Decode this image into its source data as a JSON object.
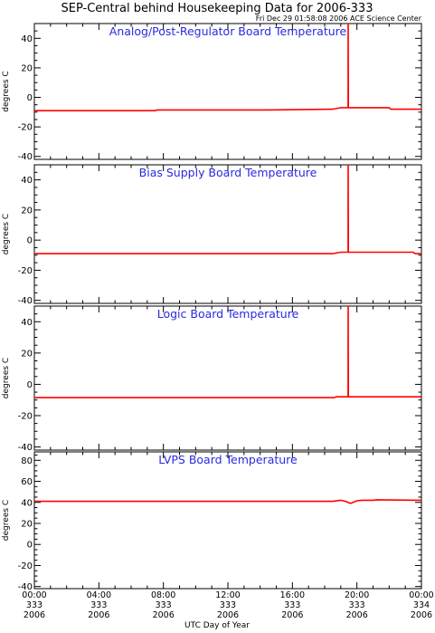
{
  "figure": {
    "title": "SEP-Central behind Housekeeping Data for 2006-333",
    "subtitle": "Fri Dec 29 01:58:08 2006 ACE Science Center",
    "xlabel": "UTC Day of Year"
  },
  "chart_data": [
    {
      "type": "line",
      "title": "Analog/Post-Regulator Board Temperature",
      "ylabel": "degrees C",
      "xlim": [
        0,
        24
      ],
      "ylim": [
        -42,
        50
      ],
      "yticks": [
        -40,
        -20,
        0,
        20,
        40
      ],
      "series": [
        {
          "color": "#ff0000",
          "x": [
            0,
            7.5,
            7.6,
            9.5,
            14.5,
            18.5,
            19.0,
            19.45,
            19.46,
            19.47,
            19.5,
            22.0,
            22.1,
            24
          ],
          "y": [
            -9,
            -9,
            -8.5,
            -8.5,
            -8.5,
            -8,
            -7,
            -7,
            50,
            -7,
            -7,
            -7,
            -8,
            -8
          ]
        }
      ]
    },
    {
      "type": "line",
      "title": "Bias Supply Board Temperature",
      "ylabel": "degrees C",
      "xlim": [
        0,
        24
      ],
      "ylim": [
        -42,
        50
      ],
      "yticks": [
        -40,
        -20,
        0,
        20,
        40
      ],
      "series": [
        {
          "color": "#ff0000",
          "x": [
            0,
            18.5,
            19.0,
            19.45,
            19.46,
            19.47,
            19.5,
            23.5,
            23.6,
            24
          ],
          "y": [
            -9,
            -9,
            -8,
            -8,
            50,
            -8,
            -8,
            -8,
            -9,
            -9
          ]
        }
      ]
    },
    {
      "type": "line",
      "title": "Logic Board Temperature",
      "ylabel": "degrees C",
      "xlim": [
        0,
        24
      ],
      "ylim": [
        -42,
        50
      ],
      "yticks": [
        -40,
        -20,
        0,
        20,
        40
      ],
      "series": [
        {
          "color": "#ff0000",
          "x": [
            0,
            18.6,
            18.7,
            19.45,
            19.46,
            19.47,
            19.5,
            24
          ],
          "y": [
            -8.5,
            -8.5,
            -8,
            -8,
            50,
            -8,
            -8,
            -8
          ]
        }
      ]
    },
    {
      "type": "line",
      "title": "LVPS Board Temperature",
      "ylabel": "degrees C",
      "xlim": [
        0,
        24
      ],
      "ylim": [
        -42,
        88
      ],
      "yticks": [
        -40,
        -20,
        0,
        20,
        40,
        60,
        80
      ],
      "series": [
        {
          "color": "#ff0000",
          "x": [
            0,
            18.5,
            19.0,
            19.3,
            19.6,
            20.0,
            20.3,
            21.0,
            21.2,
            24
          ],
          "y": [
            41,
            41,
            42,
            41,
            39,
            41.5,
            42,
            42,
            42.5,
            42
          ]
        }
      ]
    }
  ],
  "x_axis": {
    "ticks": [
      {
        "x": 0,
        "lines": [
          "00:00",
          "333",
          "2006"
        ]
      },
      {
        "x": 4,
        "lines": [
          "04:00",
          "333",
          "2006"
        ]
      },
      {
        "x": 8,
        "lines": [
          "08:00",
          "333",
          "2006"
        ]
      },
      {
        "x": 12,
        "lines": [
          "12:00",
          "333",
          "2006"
        ]
      },
      {
        "x": 16,
        "lines": [
          "16:00",
          "333",
          "2006"
        ]
      },
      {
        "x": 20,
        "lines": [
          "20:00",
          "333",
          "2006"
        ]
      },
      {
        "x": 24,
        "lines": [
          "00:00",
          "334",
          "2006"
        ]
      }
    ]
  }
}
